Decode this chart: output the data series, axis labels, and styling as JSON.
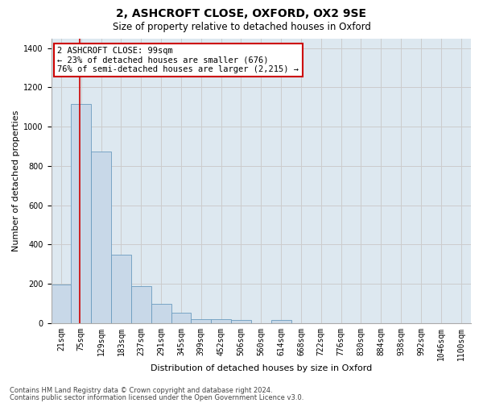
{
  "title1": "2, ASHCROFT CLOSE, OXFORD, OX2 9SE",
  "title2": "Size of property relative to detached houses in Oxford",
  "xlabel": "Distribution of detached houses by size in Oxford",
  "ylabel": "Number of detached properties",
  "bin_labels": [
    "21sqm",
    "75sqm",
    "129sqm",
    "183sqm",
    "237sqm",
    "291sqm",
    "345sqm",
    "399sqm",
    "452sqm",
    "506sqm",
    "560sqm",
    "614sqm",
    "668sqm",
    "722sqm",
    "776sqm",
    "830sqm",
    "884sqm",
    "938sqm",
    "992sqm",
    "1046sqm",
    "1100sqm"
  ],
  "bar_heights": [
    195,
    1115,
    875,
    350,
    190,
    100,
    52,
    22,
    22,
    17,
    0,
    18,
    0,
    0,
    0,
    0,
    0,
    0,
    0,
    0,
    0
  ],
  "bar_color": "#c8d8e8",
  "bar_edge_color": "#6a9cbf",
  "annotation_text": "2 ASHCROFT CLOSE: 99sqm\n← 23% of detached houses are smaller (676)\n76% of semi-detached houses are larger (2,215) →",
  "annotation_box_color": "#ffffff",
  "annotation_box_edge": "#cc0000",
  "red_line_color": "#cc0000",
  "red_line_x": 1.444,
  "ylim": [
    0,
    1450
  ],
  "yticks": [
    0,
    200,
    400,
    600,
    800,
    1000,
    1200,
    1400
  ],
  "grid_color": "#cccccc",
  "background_color": "#dde8f0",
  "footer1": "Contains HM Land Registry data © Crown copyright and database right 2024.",
  "footer2": "Contains public sector information licensed under the Open Government Licence v3.0.",
  "title1_fontsize": 10,
  "title2_fontsize": 8.5,
  "xlabel_fontsize": 8,
  "ylabel_fontsize": 8,
  "tick_fontsize": 7,
  "ann_fontsize": 7.5,
  "footer_fontsize": 6
}
